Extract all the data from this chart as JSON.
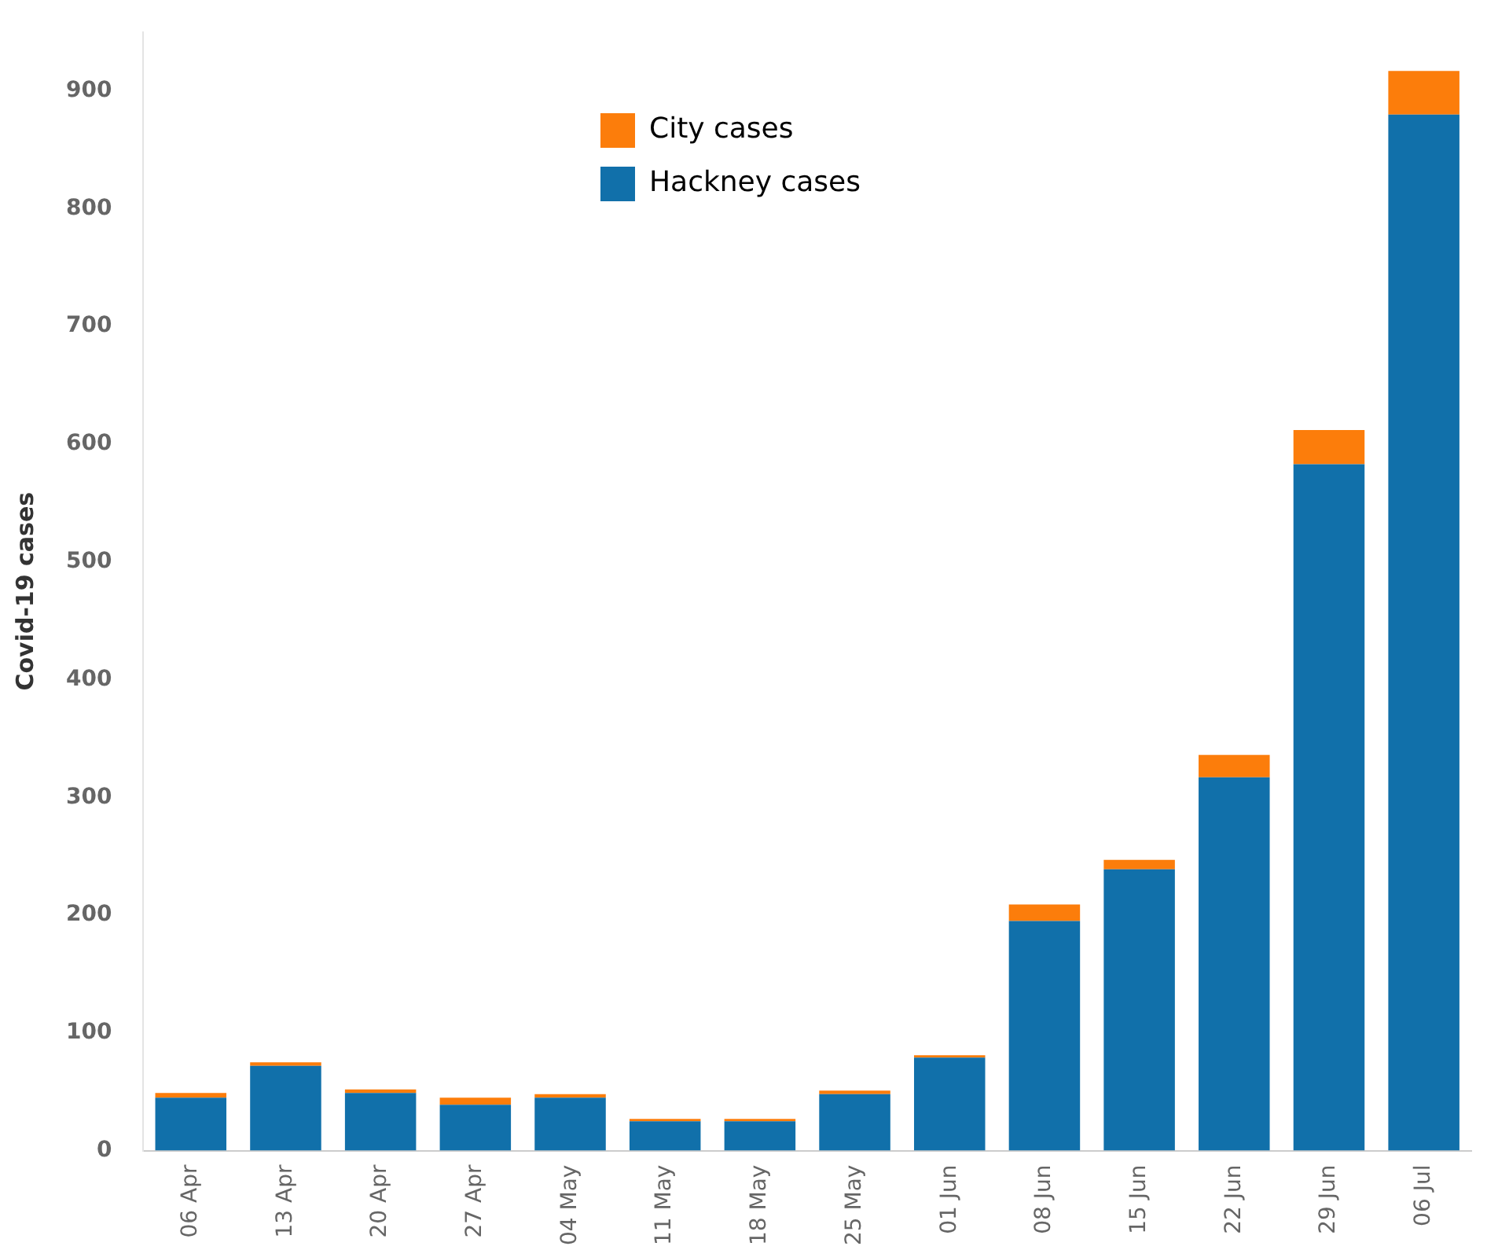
{
  "chart_data": {
    "type": "bar",
    "stacked": true,
    "ylabel": "Covid-19 cases",
    "categories": [
      "06 Apr",
      "13 Apr",
      "20 Apr",
      "27 Apr",
      "04 May",
      "11 May",
      "18 May",
      "25 May",
      "01 Jun",
      "08 Jun",
      "15 Jun",
      "22 Jun",
      "29 Jun",
      "06 Jul"
    ],
    "series": [
      {
        "name": "Hackney cases",
        "color": "#1170aa",
        "values": [
          45,
          72,
          49,
          39,
          45,
          25,
          25,
          48,
          79,
          195,
          239,
          317,
          583,
          880
        ]
      },
      {
        "name": "City cases",
        "color": "#fc7d0b",
        "values": [
          4,
          3,
          3,
          6,
          3,
          2,
          2,
          3,
          2,
          14,
          8,
          19,
          29,
          37
        ]
      }
    ],
    "ylim": [
      0,
      950
    ],
    "yticks": [
      0,
      100,
      200,
      300,
      400,
      500,
      600,
      700,
      800,
      900
    ],
    "grid": false,
    "legend": "top left"
  }
}
